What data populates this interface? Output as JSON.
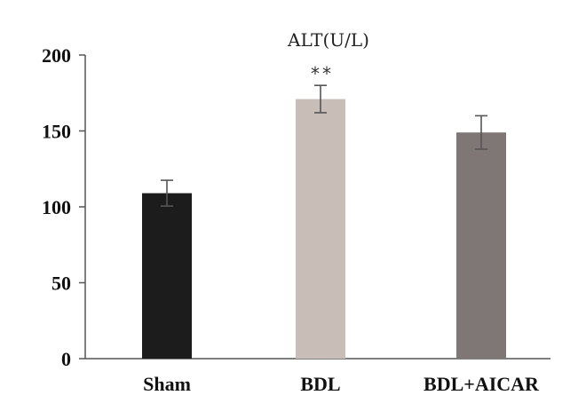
{
  "chart_data": {
    "type": "bar",
    "title": "ALT(U/L)",
    "xlabel": "",
    "ylabel": "",
    "categories": [
      "Sham",
      "BDL",
      "BDL+AICAR"
    ],
    "values": [
      109,
      171,
      149
    ],
    "error": [
      8.5,
      9,
      11
    ],
    "annotations": [
      "",
      "**",
      ""
    ],
    "colors": [
      "#1c1c1c",
      "#c8bdb7",
      "#7f7776"
    ],
    "ylim": [
      0,
      200
    ],
    "yticks": [
      0,
      50,
      100,
      150,
      200
    ],
    "grid": false,
    "legend": "none"
  }
}
